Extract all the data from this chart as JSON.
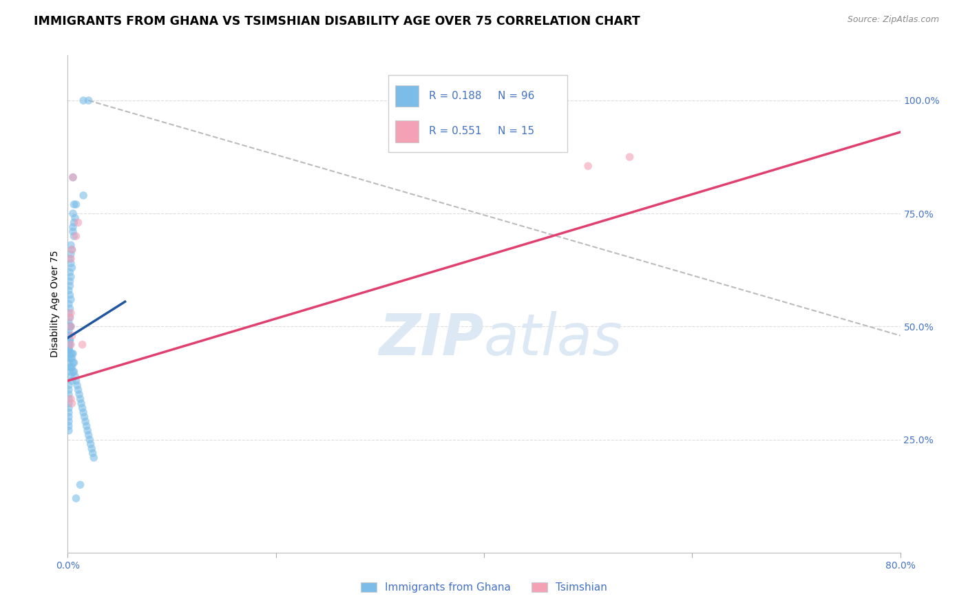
{
  "title": "IMMIGRANTS FROM GHANA VS TSIMSHIAN DISABILITY AGE OVER 75 CORRELATION CHART",
  "source": "Source: ZipAtlas.com",
  "ylabel": "Disability Age Over 75",
  "legend_label_blue": "Immigrants from Ghana",
  "legend_label_pink": "Tsimshian",
  "ytick_labels": [
    "25.0%",
    "50.0%",
    "75.0%",
    "100.0%"
  ],
  "ytick_values": [
    0.25,
    0.5,
    0.75,
    1.0
  ],
  "xlim": [
    0.0,
    0.8
  ],
  "ylim": [
    0.0,
    1.1
  ],
  "blue_scatter_x": [
    0.015,
    0.02,
    0.005,
    0.015,
    0.008,
    0.006,
    0.005,
    0.007,
    0.006,
    0.005,
    0.005,
    0.006,
    0.003,
    0.004,
    0.003,
    0.002,
    0.003,
    0.004,
    0.002,
    0.003,
    0.002,
    0.002,
    0.001,
    0.002,
    0.003,
    0.001,
    0.002,
    0.001,
    0.002,
    0.001,
    0.002,
    0.003,
    0.002,
    0.001,
    0.002,
    0.001,
    0.001,
    0.001,
    0.002,
    0.002,
    0.001,
    0.002,
    0.001,
    0.001,
    0.003,
    0.004,
    0.005,
    0.003,
    0.004,
    0.005,
    0.006,
    0.004,
    0.003,
    0.005,
    0.006,
    0.007,
    0.008,
    0.009,
    0.01,
    0.011,
    0.012,
    0.013,
    0.014,
    0.015,
    0.016,
    0.017,
    0.018,
    0.019,
    0.02,
    0.021,
    0.022,
    0.023,
    0.024,
    0.025,
    0.001,
    0.001,
    0.001,
    0.001,
    0.001,
    0.001,
    0.001,
    0.002,
    0.002,
    0.003,
    0.004,
    0.001,
    0.001,
    0.001,
    0.001,
    0.001,
    0.001,
    0.001,
    0.001,
    0.001,
    0.001,
    0.001,
    0.012,
    0.008
  ],
  "blue_scatter_y": [
    1.0,
    1.0,
    0.83,
    0.79,
    0.77,
    0.77,
    0.75,
    0.74,
    0.73,
    0.72,
    0.71,
    0.7,
    0.68,
    0.67,
    0.66,
    0.65,
    0.64,
    0.63,
    0.62,
    0.61,
    0.6,
    0.59,
    0.58,
    0.57,
    0.56,
    0.55,
    0.54,
    0.53,
    0.52,
    0.51,
    0.5,
    0.5,
    0.5,
    0.5,
    0.5,
    0.49,
    0.48,
    0.48,
    0.47,
    0.47,
    0.46,
    0.46,
    0.45,
    0.45,
    0.44,
    0.44,
    0.44,
    0.43,
    0.43,
    0.42,
    0.42,
    0.41,
    0.41,
    0.4,
    0.4,
    0.39,
    0.38,
    0.37,
    0.36,
    0.35,
    0.34,
    0.33,
    0.32,
    0.31,
    0.3,
    0.29,
    0.28,
    0.27,
    0.26,
    0.25,
    0.24,
    0.23,
    0.22,
    0.21,
    0.48,
    0.47,
    0.46,
    0.45,
    0.44,
    0.43,
    0.42,
    0.41,
    0.4,
    0.39,
    0.38,
    0.37,
    0.36,
    0.35,
    0.34,
    0.33,
    0.32,
    0.31,
    0.3,
    0.29,
    0.28,
    0.27,
    0.15,
    0.12
  ],
  "pink_scatter_x": [
    0.005,
    0.01,
    0.008,
    0.004,
    0.003,
    0.003,
    0.002,
    0.003,
    0.004,
    0.003,
    0.014,
    0.003,
    0.004,
    0.5,
    0.54
  ],
  "pink_scatter_y": [
    0.83,
    0.73,
    0.7,
    0.67,
    0.65,
    0.53,
    0.52,
    0.5,
    0.48,
    0.46,
    0.46,
    0.34,
    0.33,
    0.855,
    0.875
  ],
  "blue_line_x": [
    0.0,
    0.055
  ],
  "blue_line_y": [
    0.475,
    0.555
  ],
  "pink_line_x": [
    0.0,
    0.8
  ],
  "pink_line_y": [
    0.38,
    0.93
  ],
  "dashed_line_x": [
    0.02,
    0.8
  ],
  "dashed_line_y": [
    1.0,
    0.48
  ],
  "scatter_alpha": 0.6,
  "scatter_size": 70,
  "blue_color": "#7BBDE8",
  "pink_color": "#F4A0B5",
  "blue_line_color": "#2255A0",
  "pink_line_color": "#E04070",
  "dashed_line_color": "#BBBBBB",
  "grid_color": "#DDDDDD",
  "text_blue": "#4472C4",
  "watermark_color": "#DCE9F5",
  "title_fontsize": 12.5,
  "axis_label_fontsize": 10,
  "tick_fontsize": 10,
  "legend_fontsize": 11
}
